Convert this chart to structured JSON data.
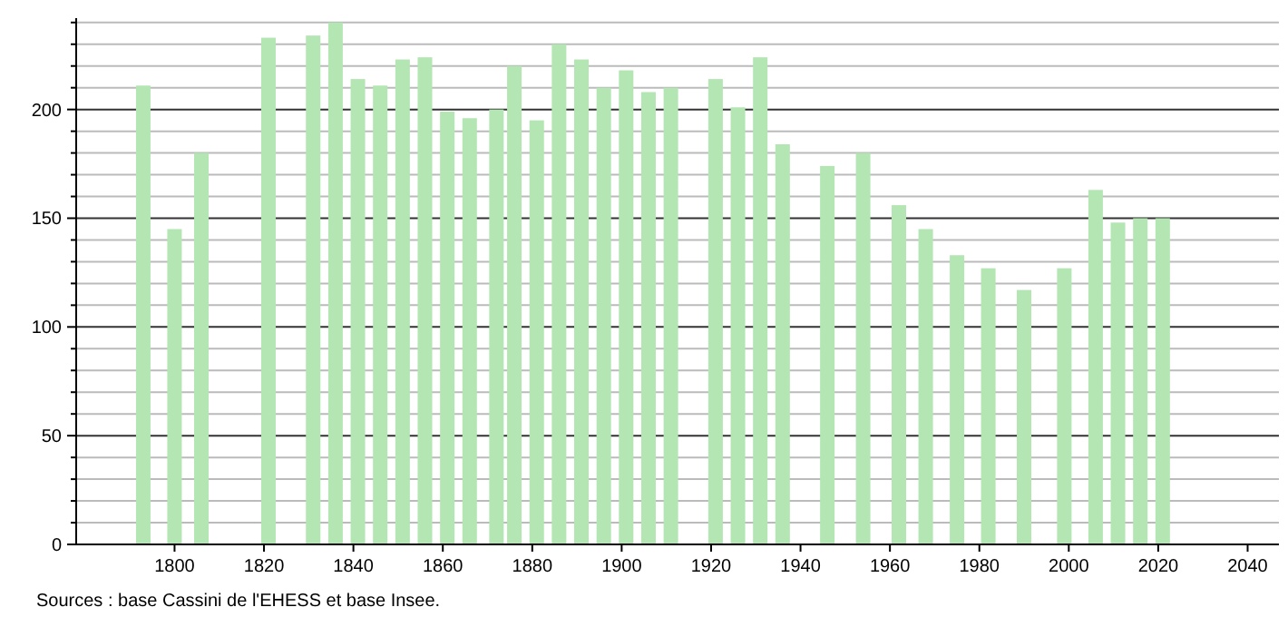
{
  "chart_data": {
    "type": "bar",
    "x": [
      1793,
      1800,
      1806,
      1821,
      1831,
      1836,
      1841,
      1846,
      1851,
      1856,
      1861,
      1866,
      1872,
      1876,
      1881,
      1886,
      1891,
      1896,
      1901,
      1906,
      1911,
      1921,
      1926,
      1931,
      1936,
      1946,
      1954,
      1962,
      1968,
      1975,
      1982,
      1990,
      1999,
      2006,
      2011,
      2016,
      2021
    ],
    "values": [
      211,
      145,
      180,
      233,
      234,
      240,
      214,
      211,
      223,
      224,
      199,
      196,
      200,
      220,
      195,
      230,
      223,
      210,
      218,
      208,
      210,
      214,
      201,
      224,
      184,
      174,
      180,
      156,
      145,
      133,
      127,
      117,
      127,
      163,
      148,
      150,
      150
    ],
    "color": "#b3e6b3",
    "xlim": [
      1778,
      2047
    ],
    "xticks": [
      1800,
      1820,
      1840,
      1860,
      1880,
      1900,
      1920,
      1940,
      1960,
      1980,
      2000,
      2020,
      2040
    ],
    "ylim": [
      0,
      242
    ],
    "yticks": [
      0,
      {
        "value": 10,
        "label": null
      },
      {
        "value": 20,
        "label": null
      },
      {
        "value": 30,
        "label": null
      },
      {
        "value": 40,
        "label": null
      },
      50,
      {
        "value": 60,
        "label": null
      },
      {
        "value": 70,
        "label": null
      },
      {
        "value": 80,
        "label": null
      },
      {
        "value": 90,
        "label": null
      },
      100,
      {
        "value": 110,
        "label": null
      },
      {
        "value": 120,
        "label": null
      },
      {
        "value": 130,
        "label": null
      },
      {
        "value": 140,
        "label": null
      },
      150,
      {
        "value": 160,
        "label": null
      },
      {
        "value": 170,
        "label": null
      },
      {
        "value": 180,
        "label": null
      },
      {
        "value": 190,
        "label": null
      },
      200,
      {
        "value": 210,
        "label": null
      },
      {
        "value": 220,
        "label": null
      },
      {
        "value": 230,
        "label": null
      },
      {
        "value": 240,
        "label": null
      }
    ],
    "grid": true,
    "annotations": [
      "Sources : base Cassini de l'EHESS et base Insee."
    ]
  }
}
